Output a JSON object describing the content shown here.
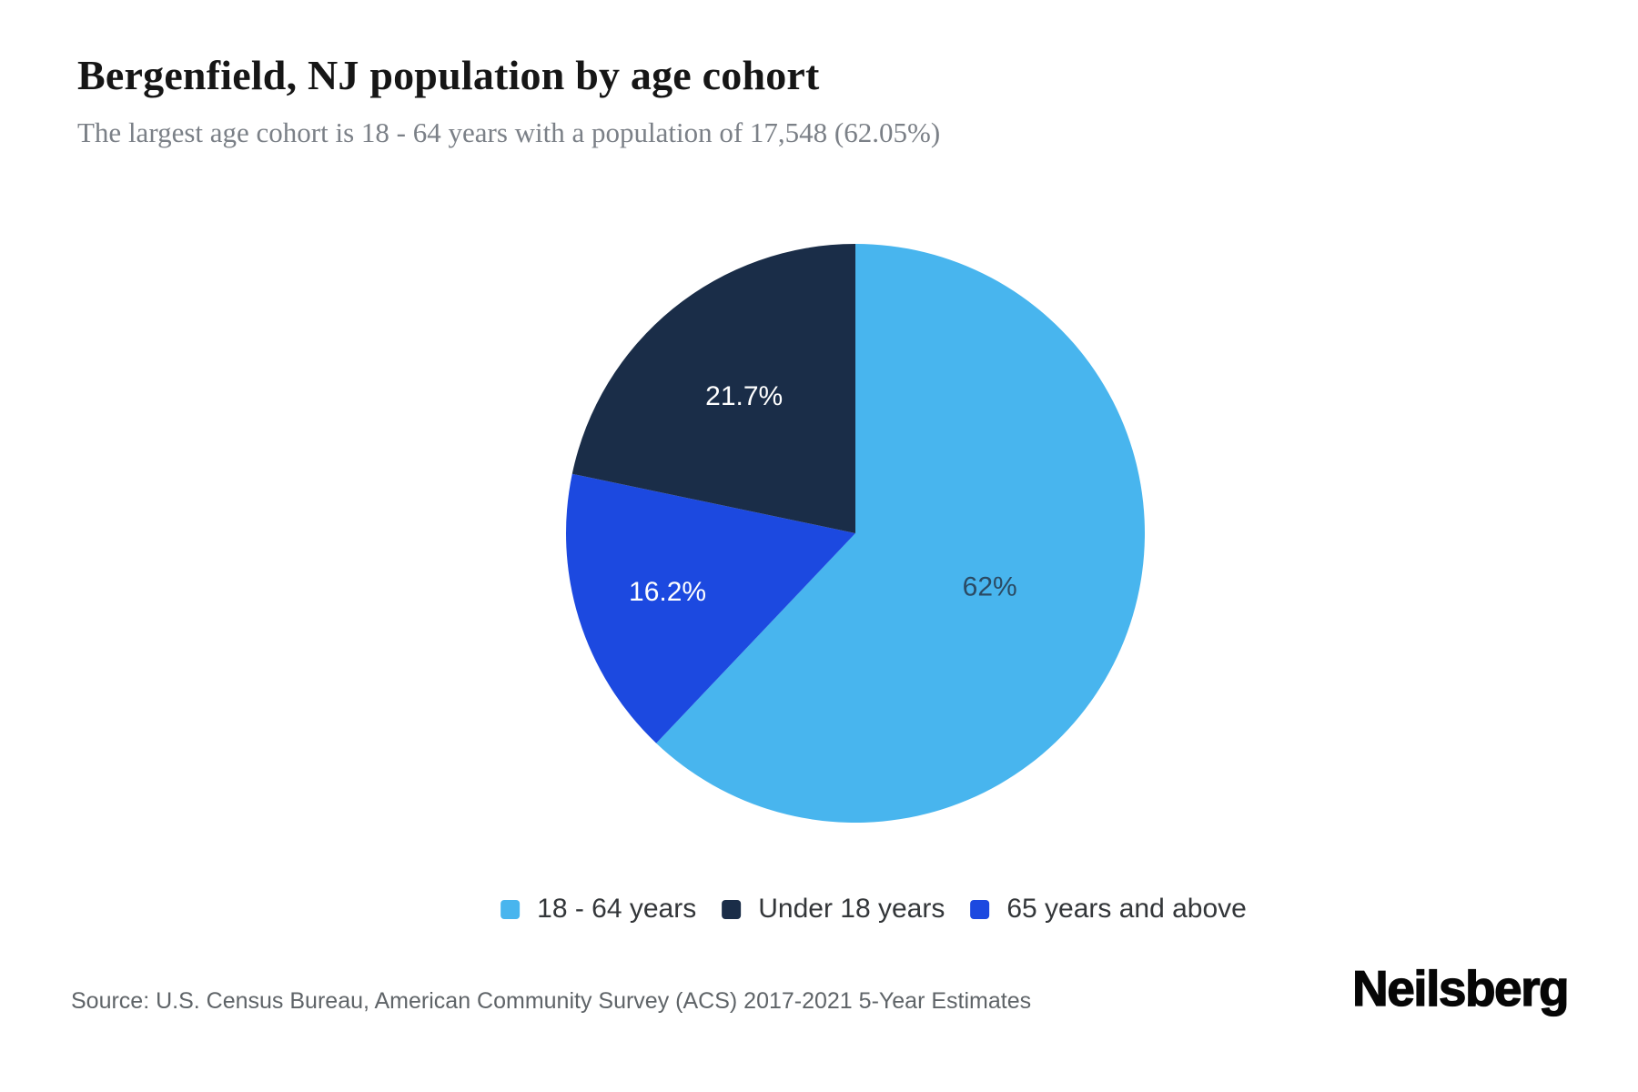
{
  "chart_data": {
    "type": "pie",
    "title": "Bergenfield, NJ population by age cohort",
    "subtitle": "The largest age cohort is 18 - 64 years with a population of 17,548 (62.05%)",
    "largest_cohort": {
      "label": "18 - 64 years",
      "population": "17,548",
      "percent": "62.05%"
    },
    "start_angle_deg": 0,
    "direction": "clockwise",
    "legend_position": "bottom",
    "slices": [
      {
        "label": "18 - 64 years",
        "value": 62.05,
        "display": "62%",
        "color": "#48b5ee",
        "label_color": "#2b4a63",
        "label_r": 0.5
      },
      {
        "label": "65 years and above",
        "value": 16.2,
        "display": "16.2%",
        "color": "#1c49e0",
        "label_color": "#ffffff",
        "label_r": 0.68
      },
      {
        "label": "Under 18 years",
        "value": 21.7,
        "display": "21.7%",
        "color": "#1a2d48",
        "label_color": "#ffffff",
        "label_r": 0.61
      }
    ]
  },
  "legend": {
    "items": [
      {
        "label": "18 - 64 years"
      },
      {
        "label": "Under 18 years"
      },
      {
        "label": "65 years and above"
      }
    ]
  },
  "footer": {
    "source": "Source: U.S. Census Bureau, American Community Survey (ACS) 2017-2021 5-Year Estimates",
    "brand": "Neilsberg"
  }
}
